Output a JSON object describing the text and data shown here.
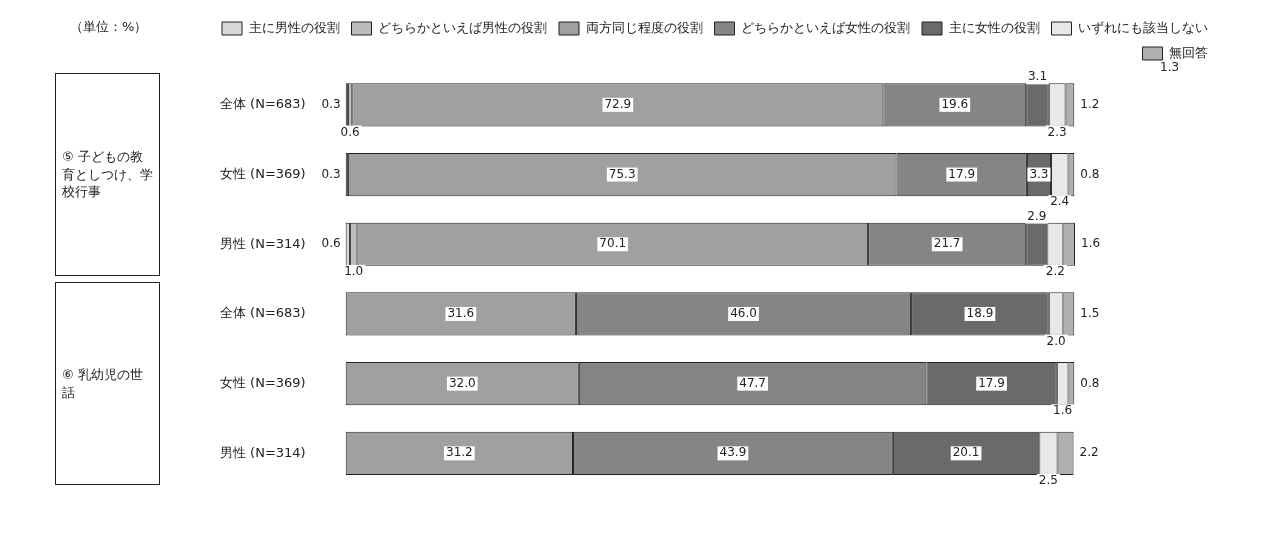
{
  "chart_data": {
    "type": "bar",
    "orientation": "horizontal",
    "stacked": true,
    "legend": "top",
    "grid": false,
    "tick_labels": "y",
    "categories": [
      "全体 (N=683)",
      "女性 (N=369)",
      "男性 (N=314)",
      "全体 (N=683)",
      "女性 (N=369)",
      "男性 (N=314)"
    ],
    "series": [
      {
        "name": "主に男性の役割",
        "color": "#d8d8d8",
        "values": [
          0.3,
          0.3,
          0.6,
          null,
          null,
          null
        ],
        "value_labels": [
          "0.3",
          "0.3",
          "0.6",
          null,
          null,
          null
        ]
      },
      {
        "name": "どちらかといえば男性の役割",
        "color": "#bcbcbc",
        "values": [
          0.6,
          null,
          1.0,
          null,
          null,
          null
        ],
        "value_labels": [
          "0.6",
          null,
          "1.0",
          null,
          null,
          null
        ]
      },
      {
        "name": "両方同じ程度の役割",
        "color": "#a0a0a0",
        "values": [
          72.9,
          75.3,
          70.1,
          31.6,
          32.0,
          31.2
        ],
        "value_labels": [
          "72.9",
          "75.3",
          "70.1",
          "31.6",
          "32.0",
          "31.2"
        ]
      },
      {
        "name": "どちらかといえば女性の役割",
        "color": "#858585",
        "values": [
          19.6,
          17.9,
          21.7,
          46.0,
          47.7,
          43.9
        ],
        "value_labels": [
          "19.6",
          "17.9",
          "21.7",
          "46.0",
          "47.7",
          "43.9"
        ]
      },
      {
        "name": "主に女性の役割",
        "color": "#6a6a6a",
        "values": [
          3.1,
          3.3,
          2.9,
          18.9,
          17.9,
          20.1
        ],
        "value_labels": [
          "3.1",
          "3.3",
          "2.9",
          "18.9",
          "17.9",
          "20.1"
        ]
      },
      {
        "name": "いずれにも該当しない",
        "color": "#e8e8e8",
        "values": [
          2.3,
          2.4,
          2.2,
          2.0,
          1.6,
          2.5
        ],
        "value_labels": [
          "2.3",
          "2.4",
          "2.2",
          "2.0",
          "1.6",
          "2.5"
        ]
      },
      {
        "name": "無回答",
        "color": "#b0b0b0",
        "values": [
          1.2,
          0.8,
          1.6,
          1.5,
          0.8,
          2.2
        ],
        "value_labels": [
          "1.2",
          "0.8",
          "1.6",
          "1.5",
          "0.8",
          "2.2"
        ]
      }
    ],
    "annotations": [
      "（単位：%）",
      "⑤ 子どもの教育としつけ、学校行事",
      "⑥ 乳幼児の世話",
      "1.3"
    ]
  }
}
